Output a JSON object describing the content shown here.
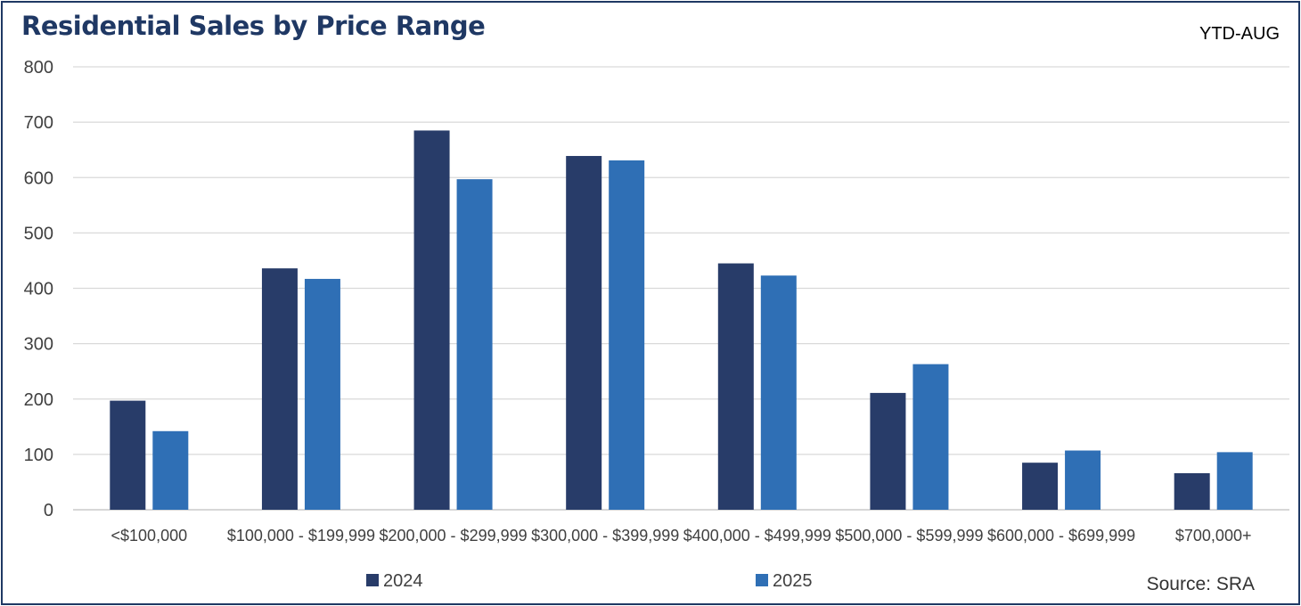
{
  "header": {
    "title": "Residential Sales by Price Range",
    "period": "YTD-AUG"
  },
  "footer": {
    "source": "Source: SRA"
  },
  "colors": {
    "series_2024": "#283c69",
    "series_2025": "#2f6fb5",
    "grid": "#d9d9d9",
    "title": "#1f3864"
  },
  "chart_data": {
    "type": "bar",
    "title": "Residential Sales by Price Range",
    "xlabel": "",
    "ylabel": "",
    "ylim": [
      0,
      800
    ],
    "yticks": [
      0,
      100,
      200,
      300,
      400,
      500,
      600,
      700,
      800
    ],
    "grid": true,
    "legend_position": "bottom",
    "categories": [
      "<$100,000",
      "$100,000 - $199,999",
      "$200,000 - $299,999",
      "$300,000 - $399,999",
      "$400,000 - $499,999",
      "$500,000 - $599,999",
      "$600,000 - $699,999",
      "$700,000+"
    ],
    "series": [
      {
        "name": "2024",
        "values": [
          197,
          436,
          685,
          639,
          445,
          211,
          85,
          66
        ]
      },
      {
        "name": "2025",
        "values": [
          142,
          417,
          597,
          631,
          423,
          263,
          107,
          104
        ]
      }
    ]
  }
}
